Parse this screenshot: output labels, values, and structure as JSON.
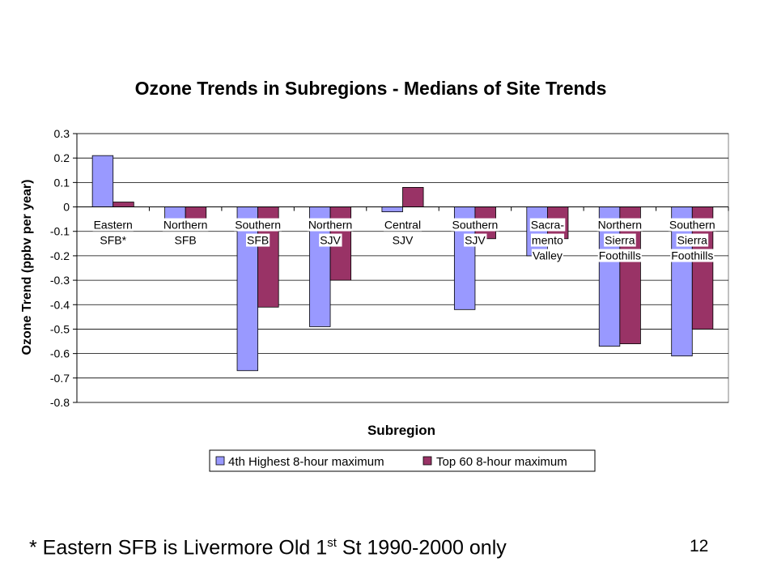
{
  "chart_data": {
    "type": "bar",
    "title": "Ozone Trends in Subregions - Medians of Site Trends",
    "xlabel": "Subregion",
    "ylabel": "Ozone Trend (ppbv per year)",
    "ylim": [
      -0.8,
      0.3
    ],
    "yticks": [
      "0.3",
      "0.2",
      "0.1",
      "0",
      "-0.1",
      "-0.2",
      "-0.3",
      "-0.4",
      "-0.5",
      "-0.6",
      "-0.7",
      "-0.8"
    ],
    "grid": true,
    "legend_position": "bottom",
    "categories": [
      "Eastern SFB*",
      "Northern SFB",
      "Southern SFB",
      "Northern SJV",
      "Central SJV",
      "Southern SJV",
      "Sacra-mento Valley",
      "Northern Sierra Foothills",
      "Southern Sierra Foothills"
    ],
    "category_label_lines": [
      [
        "Eastern",
        "SFB*"
      ],
      [
        "Northern",
        "SFB"
      ],
      [
        "Southern",
        "SFB"
      ],
      [
        "Northern",
        "SJV"
      ],
      [
        "Central",
        "SJV"
      ],
      [
        "Southern",
        "SJV"
      ],
      [
        "Sacra-",
        "mento",
        "Valley"
      ],
      [
        "Northern",
        "Sierra",
        "Foothills"
      ],
      [
        "Southern",
        "Sierra",
        "Foothills"
      ]
    ],
    "series": [
      {
        "name": "4th Highest 8-hour maximum",
        "color": "#9999ff",
        "values": [
          0.21,
          -0.07,
          -0.67,
          -0.49,
          -0.02,
          -0.42,
          -0.2,
          -0.57,
          -0.61
        ]
      },
      {
        "name": "Top 60 8-hour maximum",
        "color": "#993366",
        "values": [
          0.02,
          -0.05,
          -0.41,
          -0.3,
          0.08,
          -0.13,
          -0.13,
          -0.56,
          -0.5
        ]
      }
    ]
  },
  "footnote": {
    "prefix": "* Eastern SFB is Livermore Old 1",
    "superscript": "st",
    "suffix": " St 1990-2000 only"
  },
  "slide_number": "12"
}
